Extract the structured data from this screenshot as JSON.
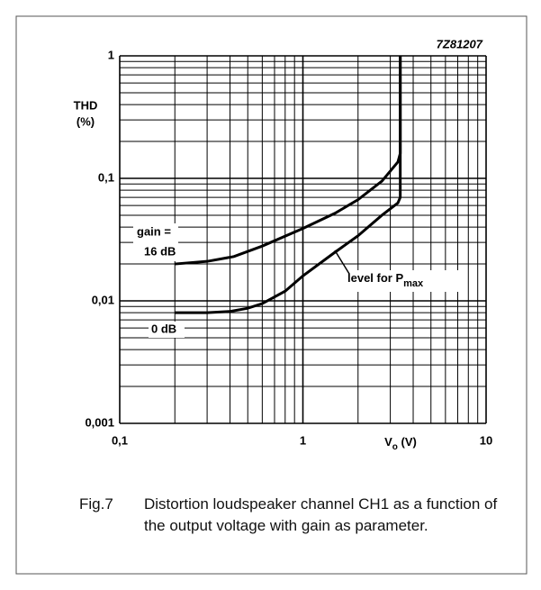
{
  "chart_data": {
    "type": "line",
    "code": "7Z81207",
    "ylabel": [
      "THD",
      "(%)"
    ],
    "xlabel": [
      "V",
      "o",
      " (V)"
    ],
    "xlog": true,
    "ylog": true,
    "xlim": [
      0.1,
      10
    ],
    "ylim": [
      0.001,
      1
    ],
    "xticks": [
      {
        "value": 0.1,
        "label": "0,1"
      },
      1,
      10
    ],
    "yticks": [
      {
        "value": 0.001,
        "label": "0,001"
      },
      {
        "value": 0.01,
        "label": "0,01"
      },
      {
        "value": 0.1,
        "label": "0,1"
      },
      1
    ],
    "xgrid": [
      0.2,
      0.3,
      0.4,
      0.5,
      0.6,
      0.7,
      0.8,
      0.9,
      2,
      3,
      4,
      5,
      6,
      7,
      8,
      9
    ],
    "ygrid": [
      0.002,
      0.003,
      0.004,
      0.005,
      0.006,
      0.007,
      0.008,
      0.009,
      0.02,
      0.03,
      0.04,
      0.05,
      0.06,
      0.07,
      0.08,
      0.09,
      0.2,
      0.3,
      0.4,
      0.5,
      0.6,
      0.7,
      0.8,
      0.9
    ],
    "gain_label": "gain =",
    "series": [
      {
        "name": "16 dB",
        "color": "#000000",
        "x": [
          0.2,
          0.3,
          0.42,
          0.6,
          1.0,
          1.5,
          2.0,
          2.7,
          3.3,
          3.4,
          3.4
        ],
        "values": [
          0.02,
          0.021,
          0.023,
          0.028,
          0.039,
          0.052,
          0.067,
          0.095,
          0.136,
          0.16,
          1
        ]
      },
      {
        "name": "0 dB",
        "color": "#000000",
        "x": [
          0.2,
          0.3,
          0.4,
          0.5,
          0.6,
          0.8,
          1.0,
          1.5,
          2.0,
          2.7,
          3.3,
          3.4,
          3.4
        ],
        "values": [
          0.008,
          0.008,
          0.0082,
          0.0087,
          0.0095,
          0.012,
          0.016,
          0.025,
          0.034,
          0.05,
          0.063,
          0.07,
          1
        ]
      }
    ],
    "annotation": [
      "level for P",
      "max"
    ],
    "caption": {
      "label": "Fig.7",
      "text": "Distortion loudspeaker channel CH1 as a function of the output voltage with gain as parameter."
    }
  }
}
